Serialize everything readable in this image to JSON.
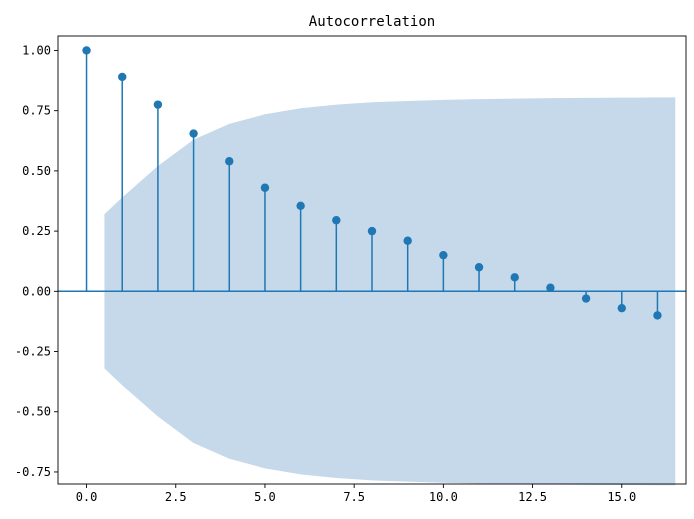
{
  "chart_data": {
    "type": "stem",
    "title": "Autocorrelation",
    "xlabel": "",
    "ylabel": "",
    "xlim": [
      -0.8,
      16.8
    ],
    "ylim": [
      -0.8,
      1.06
    ],
    "x_ticks": [
      0.0,
      2.5,
      5.0,
      7.5,
      10.0,
      12.5,
      15.0
    ],
    "x_tick_labels": [
      "0.0",
      "2.5",
      "5.0",
      "7.5",
      "10.0",
      "12.5",
      "15.0"
    ],
    "y_ticks": [
      1.0,
      0.75,
      0.5,
      0.25,
      0.0,
      -0.25,
      -0.5,
      -0.75
    ],
    "y_tick_labels": [
      "1.00",
      "0.75",
      "0.50",
      "0.25",
      "0.00",
      "-0.25",
      "-0.50",
      "-0.75"
    ],
    "grid": false,
    "lags": [
      0,
      1,
      2,
      3,
      4,
      5,
      6,
      7,
      8,
      9,
      10,
      11,
      12,
      13,
      14,
      15,
      16
    ],
    "values": [
      1.0,
      0.89,
      0.775,
      0.655,
      0.54,
      0.43,
      0.355,
      0.295,
      0.25,
      0.21,
      0.15,
      0.1,
      0.058,
      0.015,
      -0.03,
      -0.07,
      -0.1
    ],
    "confidence_band": {
      "x": [
        0.5,
        1,
        2,
        3,
        4,
        5,
        6,
        7,
        8,
        9,
        10,
        11,
        12,
        13,
        14,
        15,
        16,
        16.5
      ],
      "upper": [
        0.32,
        0.39,
        0.52,
        0.63,
        0.695,
        0.735,
        0.76,
        0.775,
        0.785,
        0.79,
        0.795,
        0.798,
        0.8,
        0.802,
        0.803,
        0.804,
        0.805,
        0.805
      ],
      "color": "#c5d9ea"
    },
    "marker_color": "#1f77b4",
    "stem_color": "#1f77b4",
    "baseline_color": "#1f77b4"
  }
}
